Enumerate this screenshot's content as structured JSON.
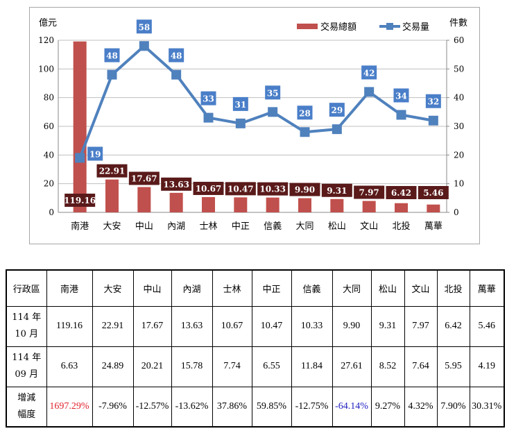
{
  "chart_data": {
    "type": "bar+line",
    "ylabel_left": "億元",
    "ylabel_right": "件數",
    "ylim_left": [
      0,
      120
    ],
    "yticks_left": [
      0,
      20,
      40,
      60,
      80,
      100,
      120
    ],
    "ylim_right": [
      0,
      60
    ],
    "yticks_right": [
      0,
      10,
      20,
      30,
      40,
      50,
      60
    ],
    "grid": true,
    "legend_position": "top-right",
    "categories": [
      "南港",
      "大安",
      "中山",
      "內湖",
      "士林",
      "中正",
      "信義",
      "大同",
      "松山",
      "文山",
      "北投",
      "萬華"
    ],
    "series": [
      {
        "name": "交易總額",
        "type": "bar",
        "axis": "left",
        "color": "#c0504d",
        "label_color": "#5a1a1a",
        "values": [
          119.16,
          22.91,
          17.67,
          13.63,
          10.67,
          10.47,
          10.33,
          9.9,
          9.31,
          7.97,
          6.42,
          5.46
        ],
        "labels": [
          "119.16",
          "22.91",
          "17.67",
          "13.63",
          "10.67",
          "10.47",
          "10.33",
          "9.90",
          "9.31",
          "7.97",
          "6.42",
          "5.46"
        ]
      },
      {
        "name": "交易量",
        "type": "line",
        "axis": "right",
        "color": "#4f81bd",
        "label_color": "#4a7ec8",
        "values": [
          19,
          48,
          58,
          48,
          33,
          31,
          35,
          28,
          29,
          42,
          34,
          32
        ]
      }
    ]
  },
  "table": {
    "header": [
      "行政區",
      "南港",
      "大安",
      "中山",
      "內湖",
      "士林",
      "中正",
      "信義",
      "大同",
      "松山",
      "文山",
      "北投",
      "萬華"
    ],
    "rows": [
      {
        "label_line1": "114 年",
        "label_line2": "10 月",
        "values": [
          "119.16",
          "22.91",
          "17.67",
          "13.63",
          "10.67",
          "10.47",
          "10.33",
          "9.90",
          "9.31",
          "7.97",
          "6.42",
          "5.46"
        ]
      },
      {
        "label_line1": "114 年",
        "label_line2": "09 月",
        "values": [
          "6.63",
          "24.89",
          "20.21",
          "15.78",
          "7.74",
          "6.55",
          "11.84",
          "27.61",
          "8.52",
          "7.64",
          "5.95",
          "4.19"
        ]
      },
      {
        "label_line1": "增減",
        "label_line2": "幅度",
        "values": [
          "1697.29%",
          "-7.96%",
          "-12.57%",
          "-13.62%",
          "37.86%",
          "59.85%",
          "-12.75%",
          "-64.14%",
          "9.27%",
          "4.32%",
          "7.90%",
          "30.31%"
        ],
        "value_colors": [
          "#e0202a",
          null,
          null,
          null,
          null,
          null,
          null,
          "#2020c0",
          null,
          null,
          null,
          null
        ]
      }
    ]
  }
}
